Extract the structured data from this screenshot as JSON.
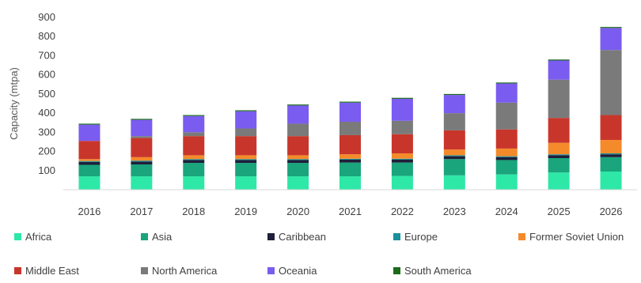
{
  "chart_data": {
    "type": "bar",
    "stacked": true,
    "title": "",
    "xlabel": "",
    "ylabel": "Capacity (mtpa)",
    "ylim": [
      0,
      900
    ],
    "yticks": [
      "100",
      "200",
      "300",
      "400",
      "500",
      "600",
      "700",
      "800",
      "900"
    ],
    "grid": false,
    "legend_position": "bottom",
    "categories": [
      "2016",
      "2017",
      "2018",
      "2019",
      "2020",
      "2021",
      "2022",
      "2023",
      "2024",
      "2025",
      "2026"
    ],
    "series": [
      {
        "name": "Africa",
        "color": "#2ee8a8",
        "values": [
          70,
          70,
          70,
          70,
          70,
          70,
          72,
          75,
          80,
          90,
          95
        ]
      },
      {
        "name": "Asia",
        "color": "#1aa57c",
        "values": [
          60,
          62,
          70,
          70,
          70,
          72,
          70,
          85,
          75,
          75,
          75
        ]
      },
      {
        "name": "Caribbean",
        "color": "#1f1f3a",
        "values": [
          15,
          15,
          15,
          15,
          15,
          15,
          15,
          15,
          15,
          15,
          15
        ]
      },
      {
        "name": "Europe",
        "color": "#1b8f9a",
        "values": [
          5,
          5,
          5,
          5,
          5,
          5,
          5,
          5,
          5,
          5,
          5
        ]
      },
      {
        "name": "Former Soviet Union",
        "color": "#f58a2a",
        "values": [
          10,
          18,
          20,
          20,
          20,
          23,
          28,
          30,
          40,
          60,
          70
        ]
      },
      {
        "name": "Middle East",
        "color": "#c8362b",
        "values": [
          95,
          100,
          100,
          100,
          100,
          100,
          100,
          100,
          100,
          130,
          130
        ]
      },
      {
        "name": "North America",
        "color": "#7a7a7a",
        "values": [
          0,
          10,
          20,
          40,
          65,
          70,
          70,
          90,
          140,
          200,
          340
        ]
      },
      {
        "name": "Oceania",
        "color": "#7a5cf0",
        "values": [
          85,
          85,
          85,
          90,
          95,
          100,
          115,
          95,
          100,
          100,
          115
        ]
      },
      {
        "name": "South America",
        "color": "#1b6b1b",
        "values": [
          5,
          5,
          5,
          5,
          5,
          5,
          5,
          5,
          5,
          5,
          5
        ]
      }
    ]
  }
}
